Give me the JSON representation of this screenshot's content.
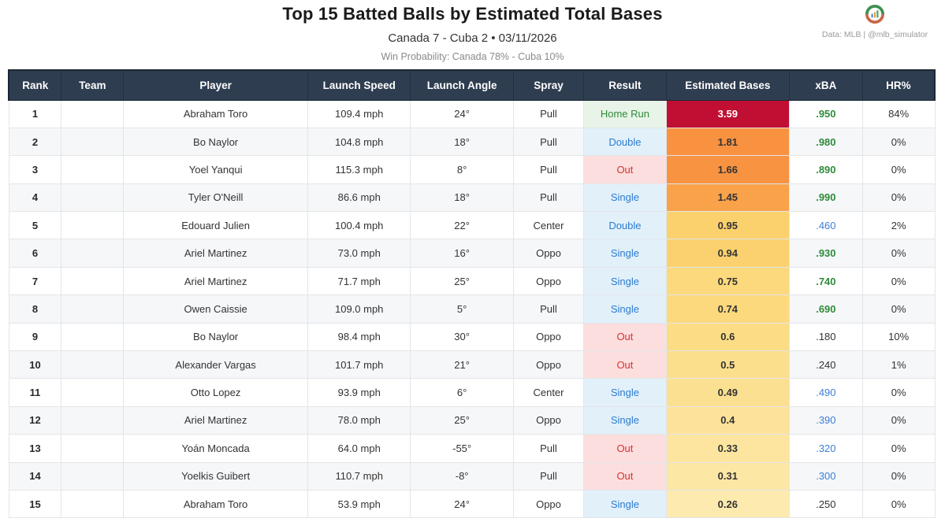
{
  "header": {
    "title": "Top 15 Batted Balls by Estimated Total Bases",
    "subtitle": "Canada 7 - Cuba 2  •  03/11/2026",
    "win_probability": "Win Probability: Canada 78% - Cuba 10%",
    "attribution": "Data: MLB  |  @mlb_simulator",
    "logo_icon": "mlb-simulator-badge"
  },
  "colors": {
    "header_bg": "#2e3d50",
    "header_text": "#ffffff",
    "row_alt_bg": "#f6f7f9",
    "result_styles": {
      "Home Run": {
        "color": "#2e8b3a",
        "bg": "#e7f4e7"
      },
      "Double": {
        "color": "#2b7bd0",
        "bg": "#e2f0fa"
      },
      "Single": {
        "color": "#2b7bd0",
        "bg": "#e2f0fa"
      },
      "Out": {
        "color": "#d63333",
        "bg": "#fcdede"
      }
    },
    "xba_colors": {
      "green": "#2e8b3a",
      "blue": "#3d7edb",
      "dark": "#333333"
    },
    "top_bases_bg": "#c00f33",
    "logo_green": "#3f8f4f",
    "logo_orange": "#c9664a"
  },
  "chart_data": {
    "type": "table",
    "title": "Top 15 Batted Balls by Estimated Total Bases",
    "subtitle": "Canada 7 - Cuba 2 • 03/11/2026",
    "win_probability": "Win Probability: Canada 78% - Cuba 10%",
    "columns": [
      "Rank",
      "Team",
      "Player",
      "Launch Speed",
      "Launch Angle",
      "Spray",
      "Result",
      "Estimated Bases",
      "xBA",
      "HR%"
    ],
    "rows": [
      {
        "rank": "1",
        "team": "",
        "player": "Abraham Toro",
        "launch_speed": "109.4 mph",
        "launch_angle": "24°",
        "spray": "Pull",
        "result": "Home Run",
        "est_bases": "3.59",
        "bases_bg": "#c00f33",
        "bases_color": "#ffffff",
        "xba": ".950",
        "xba_style": "green",
        "hr_pct": "84%"
      },
      {
        "rank": "2",
        "team": "",
        "player": "Bo Naylor",
        "launch_speed": "104.8 mph",
        "launch_angle": "18°",
        "spray": "Pull",
        "result": "Double",
        "est_bases": "1.81",
        "bases_bg": "#f89241",
        "bases_color": "#333333",
        "xba": ".980",
        "xba_style": "green",
        "hr_pct": "0%"
      },
      {
        "rank": "3",
        "team": "",
        "player": "Yoel Yanqui",
        "launch_speed": "115.3 mph",
        "launch_angle": "8°",
        "spray": "Pull",
        "result": "Out",
        "est_bases": "1.66",
        "bases_bg": "#f89342",
        "bases_color": "#333333",
        "xba": ".890",
        "xba_style": "green",
        "hr_pct": "0%"
      },
      {
        "rank": "4",
        "team": "",
        "player": "Tyler O'Neill",
        "launch_speed": "86.6 mph",
        "launch_angle": "18°",
        "spray": "Pull",
        "result": "Single",
        "est_bases": "1.45",
        "bases_bg": "#f9a24a",
        "bases_color": "#333333",
        "xba": ".990",
        "xba_style": "green",
        "hr_pct": "0%"
      },
      {
        "rank": "5",
        "team": "",
        "player": "Edouard Julien",
        "launch_speed": "100.4 mph",
        "launch_angle": "22°",
        "spray": "Center",
        "result": "Double",
        "est_bases": "0.95",
        "bases_bg": "#fbd16e",
        "bases_color": "#333333",
        "xba": ".460",
        "xba_style": "blue",
        "hr_pct": "2%"
      },
      {
        "rank": "6",
        "team": "",
        "player": "Ariel Martinez",
        "launch_speed": "73.0 mph",
        "launch_angle": "16°",
        "spray": "Oppo",
        "result": "Single",
        "est_bases": "0.94",
        "bases_bg": "#fbd16f",
        "bases_color": "#333333",
        "xba": ".930",
        "xba_style": "green",
        "hr_pct": "0%"
      },
      {
        "rank": "7",
        "team": "",
        "player": "Ariel Martinez",
        "launch_speed": "71.7 mph",
        "launch_angle": "25°",
        "spray": "Oppo",
        "result": "Single",
        "est_bases": "0.75",
        "bases_bg": "#fcd97c",
        "bases_color": "#333333",
        "xba": ".740",
        "xba_style": "green",
        "hr_pct": "0%"
      },
      {
        "rank": "8",
        "team": "",
        "player": "Owen Caissie",
        "launch_speed": "109.0 mph",
        "launch_angle": "5°",
        "spray": "Pull",
        "result": "Single",
        "est_bases": "0.74",
        "bases_bg": "#fcd97d",
        "bases_color": "#333333",
        "xba": ".690",
        "xba_style": "green",
        "hr_pct": "0%"
      },
      {
        "rank": "9",
        "team": "",
        "player": "Bo Naylor",
        "launch_speed": "98.4 mph",
        "launch_angle": "30°",
        "spray": "Oppo",
        "result": "Out",
        "est_bases": "0.6",
        "bases_bg": "#fcdc85",
        "bases_color": "#333333",
        "xba": ".180",
        "xba_style": "dark",
        "hr_pct": "10%"
      },
      {
        "rank": "10",
        "team": "",
        "player": "Alexander Vargas",
        "launch_speed": "101.7 mph",
        "launch_angle": "21°",
        "spray": "Oppo",
        "result": "Out",
        "est_bases": "0.5",
        "bases_bg": "#fcdf8d",
        "bases_color": "#333333",
        "xba": ".240",
        "xba_style": "dark",
        "hr_pct": "1%"
      },
      {
        "rank": "11",
        "team": "",
        "player": "Otto Lopez",
        "launch_speed": "93.9 mph",
        "launch_angle": "6°",
        "spray": "Center",
        "result": "Single",
        "est_bases": "0.49",
        "bases_bg": "#fce091",
        "bases_color": "#333333",
        "xba": ".490",
        "xba_style": "blue",
        "hr_pct": "0%"
      },
      {
        "rank": "12",
        "team": "",
        "player": "Ariel Martinez",
        "launch_speed": "78.0 mph",
        "launch_angle": "25°",
        "spray": "Oppo",
        "result": "Single",
        "est_bases": "0.4",
        "bases_bg": "#fde39a",
        "bases_color": "#333333",
        "xba": ".390",
        "xba_style": "blue",
        "hr_pct": "0%"
      },
      {
        "rank": "13",
        "team": "",
        "player": "Yoán Moncada",
        "launch_speed": "64.0 mph",
        "launch_angle": "-55°",
        "spray": "Pull",
        "result": "Out",
        "est_bases": "0.33",
        "bases_bg": "#fde5a0",
        "bases_color": "#333333",
        "xba": ".320",
        "xba_style": "blue",
        "hr_pct": "0%"
      },
      {
        "rank": "14",
        "team": "",
        "player": "Yoelkis Guibert",
        "launch_speed": "110.7 mph",
        "launch_angle": "-8°",
        "spray": "Pull",
        "result": "Out",
        "est_bases": "0.31",
        "bases_bg": "#fde7a5",
        "bases_color": "#333333",
        "xba": ".300",
        "xba_style": "blue",
        "hr_pct": "0%"
      },
      {
        "rank": "15",
        "team": "",
        "player": "Abraham Toro",
        "launch_speed": "53.9 mph",
        "launch_angle": "24°",
        "spray": "Oppo",
        "result": "Single",
        "est_bases": "0.26",
        "bases_bg": "#fdeaae",
        "bases_color": "#333333",
        "xba": ".250",
        "xba_style": "dark",
        "hr_pct": "0%"
      }
    ]
  }
}
